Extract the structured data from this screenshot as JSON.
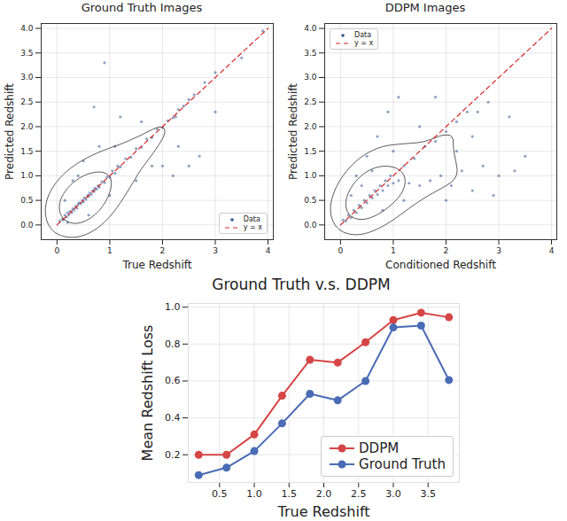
{
  "chart_data": [
    {
      "type": "scatter",
      "title": "Ground Truth Images",
      "xlabel": "True Redshift",
      "ylabel": "Predicted Redshift",
      "xlim": [
        -0.3,
        4.1
      ],
      "ylim": [
        -0.3,
        4.1
      ],
      "xticks": [
        0,
        1,
        2,
        3,
        4
      ],
      "yticks": [
        {
          "value": 0,
          "label": "0.0"
        },
        0.5,
        {
          "value": 1,
          "label": "1.0"
        },
        1.5,
        {
          "value": 2,
          "label": "2.0"
        },
        2.5,
        {
          "value": 3,
          "label": "3.0"
        },
        3.5,
        {
          "value": 4,
          "label": "4.0"
        }
      ],
      "grid": true,
      "legend": "lower right",
      "series": [
        {
          "name": "Data",
          "type": "scatter",
          "color": "#34568b",
          "marker": "circle",
          "x": [
            0.05,
            0.1,
            0.12,
            0.15,
            0.18,
            0.2,
            0.22,
            0.25,
            0.28,
            0.3,
            0.32,
            0.35,
            0.38,
            0.4,
            0.42,
            0.45,
            0.48,
            0.5,
            0.52,
            0.55,
            0.58,
            0.6,
            0.62,
            0.65,
            0.68,
            0.7,
            0.72,
            0.75,
            0.78,
            0.8,
            0.85,
            0.9,
            0.95,
            1.0,
            1.05,
            1.1,
            1.15,
            1.2,
            1.3,
            1.4,
            1.5,
            1.6,
            1.7,
            1.8,
            1.9,
            2.0,
            2.1,
            2.2,
            2.25,
            2.3,
            2.4,
            2.5,
            2.6,
            2.8,
            3.0,
            3.5,
            3.9,
            0.3,
            0.5,
            0.6,
            0.8,
            1.0,
            1.2,
            1.5,
            1.8,
            2.0,
            2.2,
            2.3,
            2.5,
            0.7,
            0.9,
            1.6,
            0.4,
            2.7,
            0.15,
            0.2,
            1.1,
            3.0
          ],
          "values": [
            0.08,
            0.12,
            0.1,
            0.2,
            0.16,
            0.25,
            0.2,
            0.28,
            0.25,
            0.33,
            0.3,
            0.38,
            0.34,
            0.42,
            0.45,
            0.43,
            0.5,
            0.47,
            0.55,
            0.52,
            0.6,
            0.58,
            0.65,
            0.62,
            0.7,
            0.68,
            0.75,
            0.73,
            0.8,
            0.77,
            0.88,
            0.86,
            0.98,
            0.97,
            1.1,
            1.05,
            1.2,
            1.18,
            1.35,
            1.38,
            1.55,
            1.58,
            1.75,
            1.78,
            1.95,
            1.98,
            2.12,
            2.18,
            2.2,
            2.35,
            2.42,
            2.55,
            2.65,
            2.9,
            3.1,
            3.4,
            3.95,
            0.9,
            1.3,
            0.2,
            1.6,
            0.6,
            2.2,
            0.9,
            1.2,
            1.2,
            1.0,
            1.6,
            1.2,
            2.4,
            3.3,
            2.1,
            1.0,
            1.4,
            0.5,
            0.05,
            1.6,
            2.3
          ]
        },
        {
          "name": "y = x",
          "type": "line",
          "color": "#d62728",
          "line_style": "dashed",
          "x": [
            0,
            4
          ],
          "values": [
            0,
            4
          ]
        }
      ]
    },
    {
      "type": "scatter",
      "title": "DDPM Images",
      "xlabel": "Conditioned Redshift",
      "ylabel": "Predicted Redshift",
      "xlim": [
        -0.3,
        4.1
      ],
      "ylim": [
        -0.3,
        4.1
      ],
      "xticks": [
        0,
        1,
        2,
        3,
        4
      ],
      "yticks": [
        {
          "value": 0,
          "label": "0.0"
        },
        0.5,
        {
          "value": 1,
          "label": "1.0"
        },
        1.5,
        {
          "value": 2,
          "label": "2.0"
        },
        2.5,
        {
          "value": 3,
          "label": "3.0"
        },
        3.5,
        {
          "value": 4,
          "label": "4.0"
        }
      ],
      "grid": true,
      "legend": "upper left",
      "series": [
        {
          "name": "Data",
          "type": "scatter",
          "color": "#34568b",
          "marker": "circle",
          "x": [
            0.05,
            0.1,
            0.15,
            0.2,
            0.25,
            0.3,
            0.35,
            0.4,
            0.45,
            0.5,
            0.55,
            0.6,
            0.65,
            0.7,
            0.75,
            0.8,
            0.85,
            0.9,
            0.95,
            1.0,
            1.1,
            1.2,
            1.3,
            1.4,
            1.5,
            1.6,
            1.7,
            1.8,
            1.9,
            2.0,
            2.1,
            2.2,
            2.3,
            2.4,
            2.5,
            2.6,
            2.7,
            2.8,
            3.0,
            3.2,
            3.5,
            0.3,
            0.5,
            0.7,
            0.9,
            0.4,
            1.0,
            1.2,
            1.5,
            2.0,
            2.5,
            0.2,
            0.6,
            0.8,
            1.1,
            1.8,
            2.2,
            2.9,
            3.3
          ],
          "values": [
            0.1,
            0.08,
            0.2,
            0.15,
            0.3,
            0.25,
            0.4,
            0.35,
            0.5,
            0.45,
            0.6,
            0.55,
            0.7,
            0.62,
            0.8,
            0.7,
            0.9,
            0.8,
            1.0,
            0.85,
            0.9,
            1.2,
            0.85,
            1.35,
            0.8,
            1.6,
            0.9,
            1.7,
            1.0,
            1.9,
            0.8,
            2.1,
            1.1,
            2.3,
            0.7,
            2.3,
            1.2,
            2.5,
            1.0,
            2.2,
            1.4,
            1.0,
            1.4,
            1.8,
            2.3,
            0.8,
            1.5,
            0.5,
            2.0,
            0.5,
            1.8,
            0.6,
            1.1,
            0.3,
            2.6,
            2.6,
            1.5,
            0.6,
            1.1
          ]
        },
        {
          "name": "y = x",
          "type": "line",
          "color": "#d62728",
          "line_style": "dashed",
          "x": [
            0,
            4
          ],
          "values": [
            0,
            4
          ]
        }
      ]
    },
    {
      "type": "line",
      "title": "Ground Truth v.s. DDPM",
      "xlabel": "True Redshift",
      "ylabel": "Mean Redshift Loss",
      "xlim": [
        0.05,
        3.95
      ],
      "ylim": [
        0.05,
        1.02
      ],
      "xticks": [
        0.5,
        {
          "value": 1,
          "label": "1.0"
        },
        1.5,
        {
          "value": 2,
          "label": "2.0"
        },
        2.5,
        {
          "value": 3,
          "label": "3.0"
        },
        3.5
      ],
      "yticks": [
        0.2,
        0.4,
        0.6,
        0.8,
        {
          "value": 1,
          "label": "1.0"
        }
      ],
      "grid": true,
      "legend": "lower right",
      "x": [
        0.2,
        0.6,
        1.0,
        1.4,
        1.8,
        2.2,
        2.6,
        3.0,
        3.4,
        3.8
      ],
      "series": [
        {
          "name": "DDPM",
          "color": "#d64545",
          "marker": "circle",
          "values": [
            0.2,
            0.2,
            0.31,
            0.52,
            0.715,
            0.7,
            0.81,
            0.93,
            0.97,
            0.945
          ]
        },
        {
          "name": "Ground Truth",
          "color": "#4a6bb5",
          "marker": "circle",
          "values": [
            0.09,
            0.13,
            0.22,
            0.37,
            0.53,
            0.495,
            0.6,
            0.89,
            0.9,
            0.605
          ]
        }
      ]
    }
  ]
}
